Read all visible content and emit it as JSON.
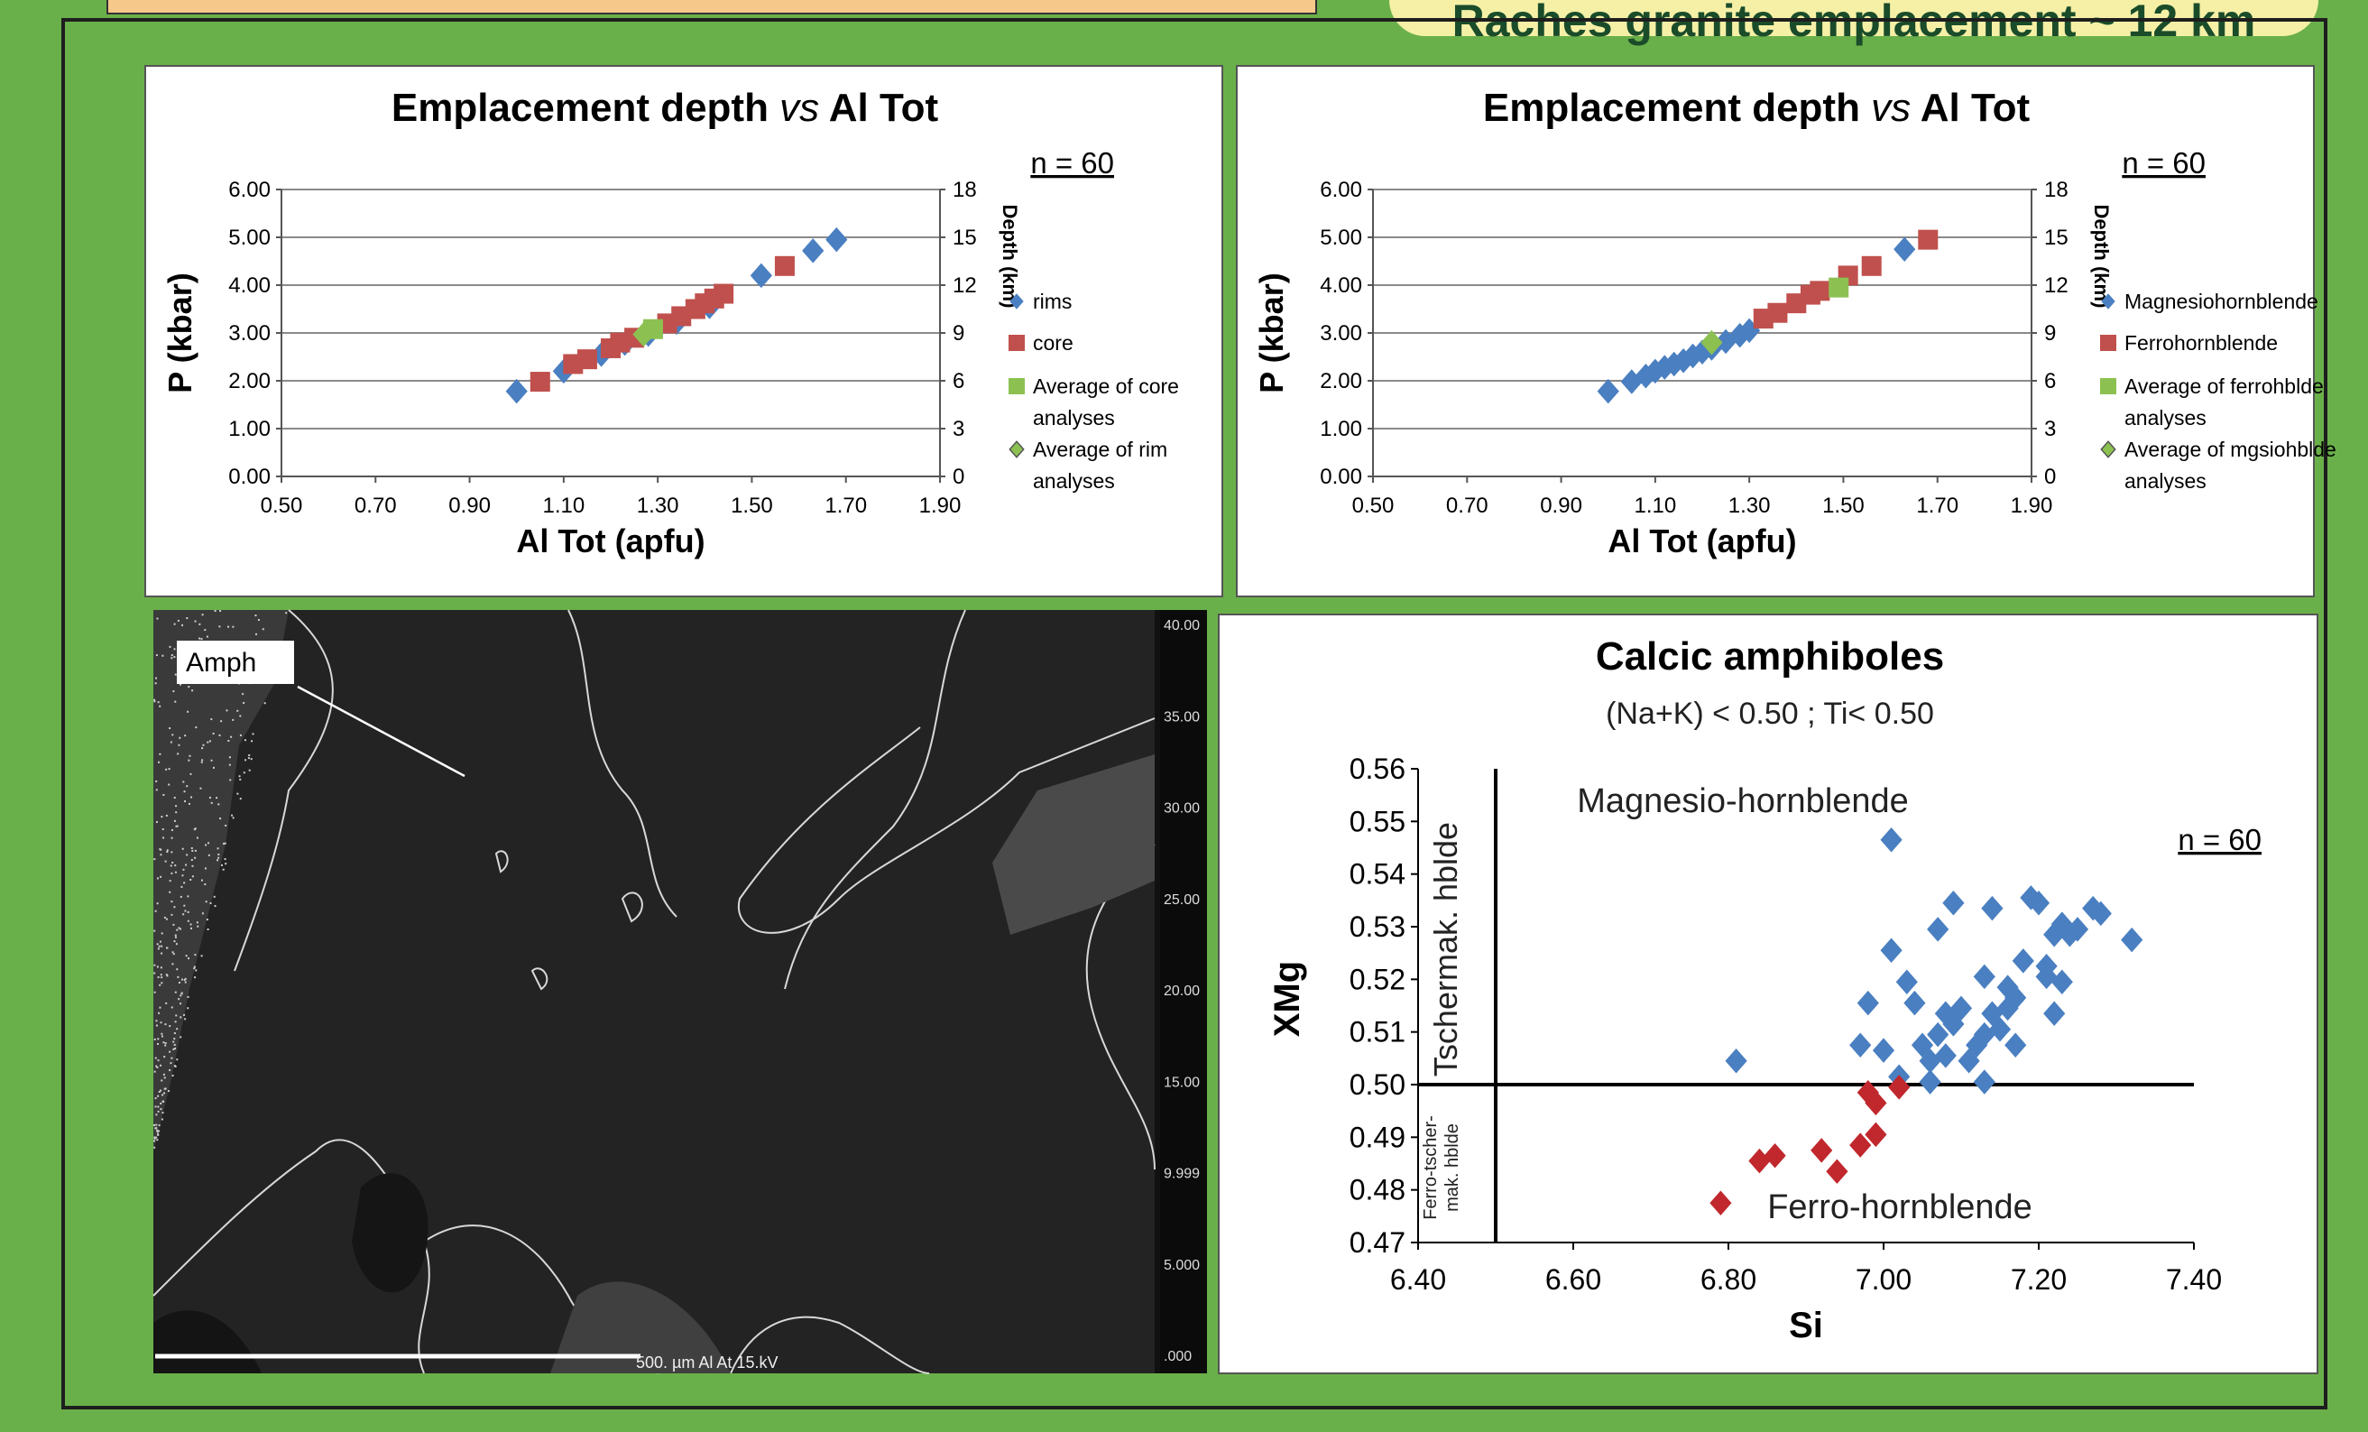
{
  "header": {
    "left_box_text": "",
    "right_banner_text": "Raches granite emplacement ~ 12 km"
  },
  "colors": {
    "background_green": "#6ab04a",
    "header_orange": "#f6c98b",
    "banner_yellow": "#f5f0a6",
    "blue": "#4a7fc1",
    "red": "#c0504d",
    "green": "#8cc152",
    "deep_red": "#c0282d"
  },
  "chart_data": [
    {
      "type": "scatter",
      "title_part1": "Emplacement depth ",
      "title_italic": "vs",
      "title_part2": " Al Tot",
      "n_label": "n = 60",
      "xlabel": "Al Tot  (apfu)",
      "ylabel": "P (kbar)",
      "y2label": "Depth (km)",
      "xlim": [
        0.5,
        1.9
      ],
      "ylim": [
        0,
        6
      ],
      "y2lim": [
        0,
        18
      ],
      "xticks": [
        "0.50",
        "0.70",
        "0.90",
        "1.10",
        "1.30",
        "1.50",
        "1.70",
        "1.90"
      ],
      "yticks": [
        "0.00",
        "1.00",
        "2.00",
        "3.00",
        "4.00",
        "5.00",
        "6.00"
      ],
      "y2ticks": [
        "0",
        "3",
        "6",
        "9",
        "12",
        "15",
        "18"
      ],
      "grid": "horizontal",
      "legend_position": "right",
      "series": [
        {
          "name": "rims",
          "marker": "diamond",
          "color": "#4a7fc1",
          "points": [
            [
              1.0,
              1.78
            ],
            [
              1.1,
              2.2
            ],
            [
              1.18,
              2.55
            ],
            [
              1.23,
              2.78
            ],
            [
              1.28,
              2.97
            ],
            [
              1.34,
              3.22
            ],
            [
              1.41,
              3.55
            ],
            [
              1.52,
              4.2
            ],
            [
              1.63,
              4.72
            ],
            [
              1.68,
              4.95
            ]
          ]
        },
        {
          "name": "core",
          "marker": "square",
          "color": "#c0504d",
          "points": [
            [
              1.05,
              1.98
            ],
            [
              1.12,
              2.35
            ],
            [
              1.15,
              2.45
            ],
            [
              1.2,
              2.68
            ],
            [
              1.22,
              2.8
            ],
            [
              1.25,
              2.9
            ],
            [
              1.32,
              3.2
            ],
            [
              1.35,
              3.35
            ],
            [
              1.38,
              3.5
            ],
            [
              1.4,
              3.62
            ],
            [
              1.42,
              3.72
            ],
            [
              1.44,
              3.82
            ],
            [
              1.57,
              4.4
            ]
          ]
        },
        {
          "name": "Average of core analyses",
          "name_line1": "Average of core",
          "name_line2": "analyses",
          "marker": "square",
          "color": "#8cc152",
          "points": [
            [
              1.29,
              3.08
            ]
          ]
        },
        {
          "name": "Average of rim analyses",
          "name_line1": "Average of rim",
          "name_line2": "analyses",
          "marker": "diamond",
          "color": "#8cc152",
          "points": [
            [
              1.27,
              2.97
            ]
          ]
        }
      ]
    },
    {
      "type": "scatter",
      "title_part1": "Emplacement depth ",
      "title_italic": "vs",
      "title_part2": " Al Tot",
      "n_label": "n = 60",
      "xlabel": "Al Tot  (apfu)",
      "ylabel": "P (kbar)",
      "y2label": "Depth (km)",
      "xlim": [
        0.5,
        1.9
      ],
      "ylim": [
        0,
        6
      ],
      "y2lim": [
        0,
        18
      ],
      "xticks": [
        "0.50",
        "0.70",
        "0.90",
        "1.10",
        "1.30",
        "1.50",
        "1.70",
        "1.90"
      ],
      "yticks": [
        "0.00",
        "1.00",
        "2.00",
        "3.00",
        "4.00",
        "5.00",
        "6.00"
      ],
      "y2ticks": [
        "0",
        "3",
        "6",
        "9",
        "12",
        "15",
        "18"
      ],
      "grid": "horizontal",
      "legend_position": "right",
      "series": [
        {
          "name": "Magnesiohornblende",
          "marker": "diamond",
          "color": "#4a7fc1",
          "points": [
            [
              1.0,
              1.78
            ],
            [
              1.05,
              1.98
            ],
            [
              1.08,
              2.1
            ],
            [
              1.1,
              2.2
            ],
            [
              1.12,
              2.28
            ],
            [
              1.14,
              2.35
            ],
            [
              1.16,
              2.42
            ],
            [
              1.18,
              2.52
            ],
            [
              1.2,
              2.6
            ],
            [
              1.22,
              2.68
            ],
            [
              1.25,
              2.82
            ],
            [
              1.28,
              2.95
            ],
            [
              1.3,
              3.05
            ],
            [
              1.63,
              4.75
            ]
          ]
        },
        {
          "name": "Ferrohornblende",
          "marker": "square",
          "color": "#c0504d",
          "points": [
            [
              1.33,
              3.3
            ],
            [
              1.36,
              3.42
            ],
            [
              1.4,
              3.62
            ],
            [
              1.43,
              3.8
            ],
            [
              1.45,
              3.88
            ],
            [
              1.51,
              4.2
            ],
            [
              1.56,
              4.4
            ],
            [
              1.68,
              4.95
            ]
          ]
        },
        {
          "name": "Average of ferrohblde analyses",
          "name_line1": "Average of ferrohblde",
          "name_line2": "analyses",
          "marker": "square",
          "color": "#8cc152",
          "points": [
            [
              1.49,
              3.95
            ]
          ]
        },
        {
          "name": "Average of mgsiohblde analyses",
          "name_line1": "Average of mgsiohblde",
          "name_line2": "analyses",
          "marker": "diamond",
          "color": "#8cc152",
          "points": [
            [
              1.22,
              2.8
            ]
          ]
        }
      ]
    },
    {
      "type": "scatter",
      "title": "Calcic amphiboles",
      "subtitle": "(Na+K) < 0.50 ; Ti< 0.50",
      "n_label": "n = 60",
      "xlabel": "Si",
      "ylabel": "XMg",
      "xlim": [
        6.4,
        7.4
      ],
      "ylim": [
        0.47,
        0.56
      ],
      "xticks": [
        "6.40",
        "6.60",
        "6.80",
        "7.00",
        "7.20",
        "7.40"
      ],
      "yticks": [
        "0.47",
        "0.48",
        "0.49",
        "0.50",
        "0.51",
        "0.52",
        "0.53",
        "0.54",
        "0.55",
        "0.56"
      ],
      "grid": "none",
      "legend_position": "none",
      "region_labels": {
        "magnesio": "Magnesio-hornblende",
        "ferro": "Ferro-hornblende",
        "tschermak": "Tschermak. hblde",
        "ferrotscher_line1": "Ferro-tscher-",
        "ferrotscher_line2": "mak. hblde"
      },
      "divider_x": 6.5,
      "divider_y": 0.5,
      "series": [
        {
          "name": "",
          "marker": "diamond",
          "color": "#4a7fc1",
          "points": [
            [
              6.81,
              0.5045
            ],
            [
              7.01,
              0.5465
            ],
            [
              7.01,
              0.5255
            ],
            [
              6.98,
              0.5155
            ],
            [
              6.97,
              0.5075
            ],
            [
              7.0,
              0.5065
            ],
            [
              7.02,
              0.5015
            ],
            [
              7.03,
              0.5195
            ],
            [
              7.04,
              0.5155
            ],
            [
              7.05,
              0.5075
            ],
            [
              7.06,
              0.5045
            ],
            [
              7.06,
              0.5005
            ],
            [
              7.07,
              0.5095
            ],
            [
              7.08,
              0.5135
            ],
            [
              7.08,
              0.5055
            ],
            [
              7.07,
              0.5295
            ],
            [
              7.09,
              0.5115
            ],
            [
              7.1,
              0.5145
            ],
            [
              7.09,
              0.5345
            ],
            [
              7.11,
              0.5045
            ],
            [
              7.12,
              0.5075
            ],
            [
              7.13,
              0.5095
            ],
            [
              7.13,
              0.5205
            ],
            [
              7.13,
              0.5005
            ],
            [
              7.14,
              0.5135
            ],
            [
              7.14,
              0.5335
            ],
            [
              7.15,
              0.5105
            ],
            [
              7.16,
              0.5185
            ],
            [
              7.16,
              0.5145
            ],
            [
              7.17,
              0.5075
            ],
            [
              7.17,
              0.5165
            ],
            [
              7.18,
              0.5235
            ],
            [
              7.19,
              0.5355
            ],
            [
              7.2,
              0.5345
            ],
            [
              7.21,
              0.5225
            ],
            [
              7.21,
              0.5205
            ],
            [
              7.22,
              0.5135
            ],
            [
              7.22,
              0.5285
            ],
            [
              7.23,
              0.5305
            ],
            [
              7.23,
              0.5195
            ],
            [
              7.24,
              0.5285
            ],
            [
              7.25,
              0.5295
            ],
            [
              7.27,
              0.5335
            ],
            [
              7.28,
              0.5325
            ],
            [
              7.32,
              0.5275
            ]
          ]
        },
        {
          "name": "",
          "marker": "diamond",
          "color": "#c0282d",
          "points": [
            [
              6.79,
              0.4775
            ],
            [
              6.84,
              0.4855
            ],
            [
              6.86,
              0.4865
            ],
            [
              6.92,
              0.4875
            ],
            [
              6.94,
              0.4835
            ],
            [
              6.97,
              0.4885
            ],
            [
              6.98,
              0.4985
            ],
            [
              6.99,
              0.4965
            ],
            [
              6.99,
              0.4905
            ],
            [
              7.02,
              0.4995
            ]
          ]
        }
      ]
    }
  ],
  "micrograph": {
    "label": "Amph",
    "scale_text": "500. µm  Al At  15.kV",
    "colorbar_ticks": [
      "40.00",
      "35.00",
      "30.00",
      "25.00",
      "20.00",
      "15.00",
      "9.999",
      "5.000",
      ".000"
    ]
  }
}
